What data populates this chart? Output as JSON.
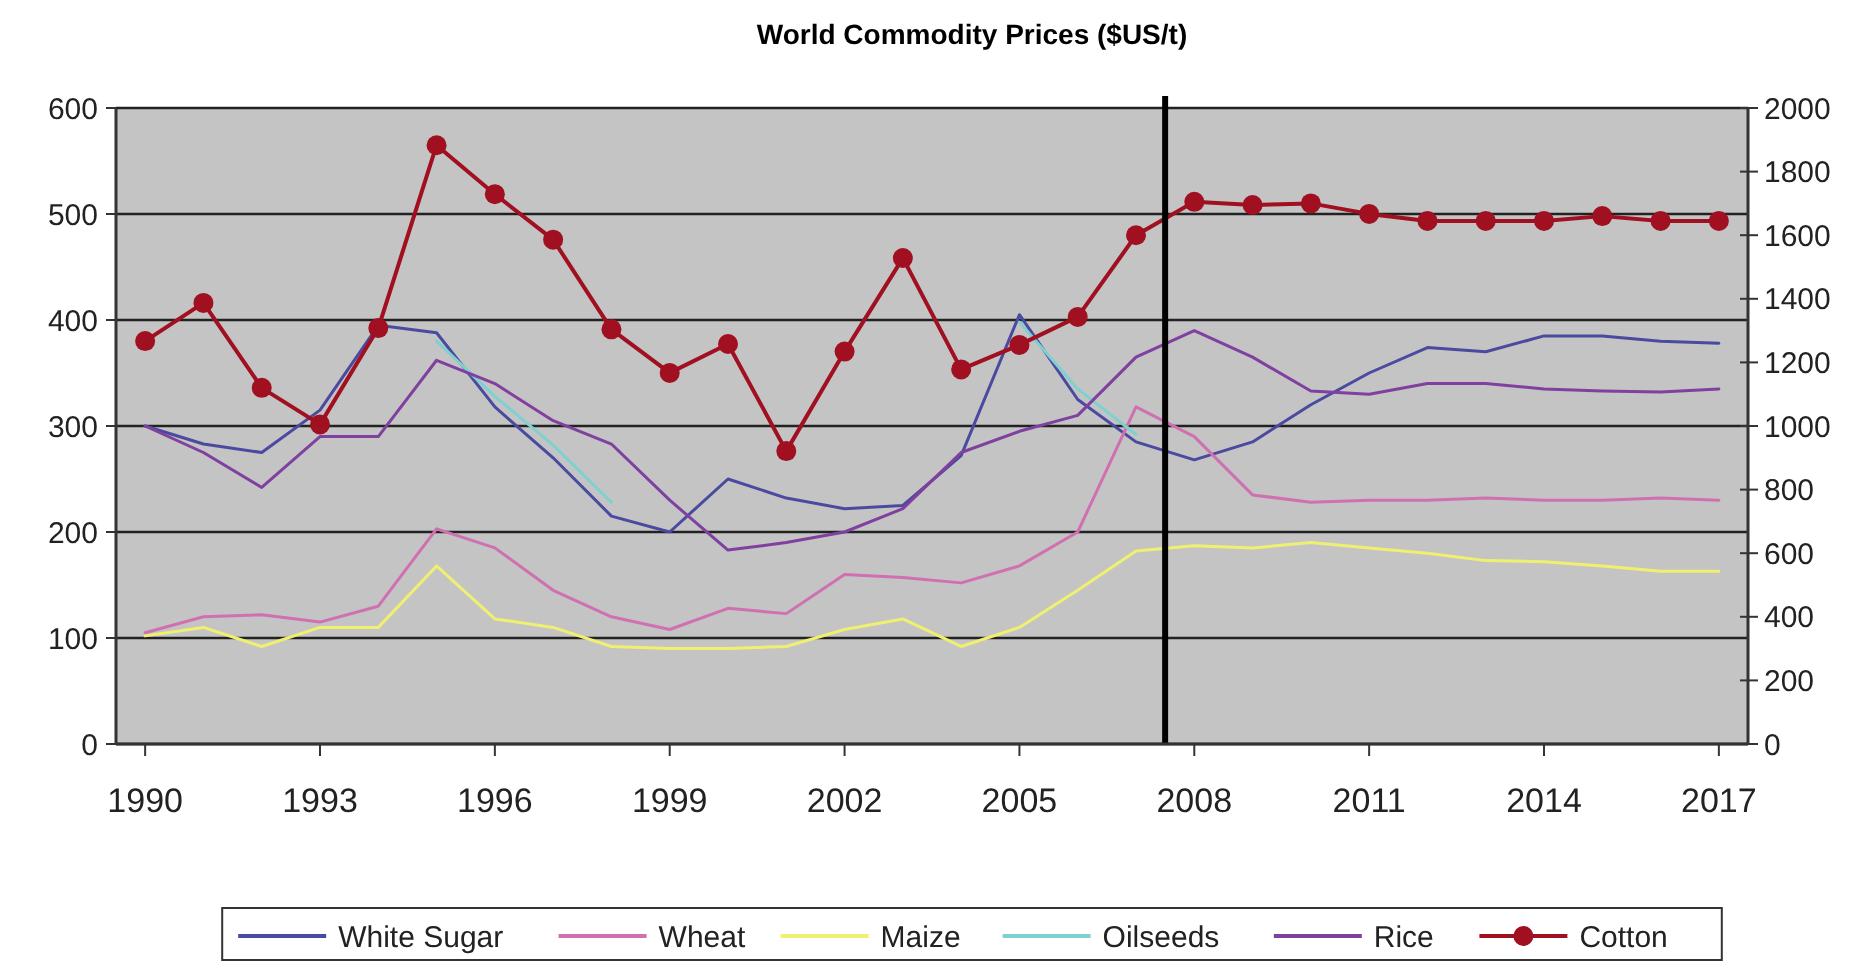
{
  "chart_data": {
    "type": "line",
    "title": "World Commodity Prices ($US/t)",
    "x": [
      1990,
      1991,
      1992,
      1993,
      1994,
      1995,
      1996,
      1997,
      1998,
      1999,
      2000,
      2001,
      2002,
      2003,
      2004,
      2005,
      2006,
      2007,
      2008,
      2009,
      2010,
      2011,
      2012,
      2013,
      2014,
      2015,
      2016,
      2017
    ],
    "xlim": [
      1989.5,
      2017.5
    ],
    "xticks": [
      1990,
      1993,
      1996,
      1999,
      2002,
      2005,
      2008,
      2011,
      2014,
      2017
    ],
    "ylim": [
      0,
      600
    ],
    "yticks": [
      0,
      100,
      200,
      300,
      400,
      500,
      600
    ],
    "y2lim": [
      0,
      2000
    ],
    "y2ticks": [
      0,
      200,
      400,
      600,
      800,
      1000,
      1200,
      1400,
      1600,
      1800,
      2000
    ],
    "grid": "y",
    "legend": "bottom",
    "marker": "none",
    "line_style": "solid",
    "ref_lines": [
      {
        "axis": "x",
        "value": 2007.5,
        "color": "#000000"
      }
    ],
    "series": [
      {
        "name": "White Sugar",
        "color": "#4a4aa0",
        "values": [
          300,
          283,
          275,
          315,
          395,
          388,
          318,
          270,
          215,
          200,
          250,
          232,
          222,
          225,
          272,
          405,
          325,
          285,
          268,
          285,
          320,
          350,
          374,
          370,
          385,
          385,
          380,
          378
        ]
      },
      {
        "name": "Wheat",
        "color": "#d070b0",
        "values": [
          105,
          120,
          122,
          115,
          130,
          203,
          185,
          145,
          120,
          108,
          128,
          123,
          160,
          157,
          152,
          168,
          200,
          318,
          290,
          235,
          228,
          230,
          230,
          232,
          230,
          230,
          232,
          230
        ]
      },
      {
        "name": "Maize",
        "color": "#f0f070",
        "values": [
          102,
          110,
          92,
          110,
          110,
          168,
          118,
          110,
          92,
          90,
          90,
          92,
          108,
          118,
          92,
          110,
          145,
          182,
          187,
          185,
          190,
          185,
          180,
          173,
          172,
          168,
          163,
          163
        ]
      },
      {
        "name": "Oilseeds",
        "color": "#80d0d0",
        "values": [
          null,
          null,
          null,
          null,
          null,
          380,
          328,
          282,
          228,
          null,
          null,
          null,
          null,
          null,
          null,
          398,
          335,
          292,
          null,
          null,
          null,
          null,
          null,
          null,
          null,
          null,
          null,
          null
        ]
      },
      {
        "name": "Rice",
        "color": "#8040a0",
        "values": [
          300,
          275,
          242,
          290,
          290,
          362,
          340,
          305,
          283,
          230,
          183,
          190,
          200,
          222,
          275,
          295,
          310,
          365,
          390,
          365,
          333,
          330,
          340,
          340,
          335,
          333,
          332,
          335
        ]
      },
      {
        "name": "Cotton",
        "color": "#a01020",
        "axis": "y2",
        "marker": "circle",
        "values": [
          1267,
          1387,
          1120,
          1005,
          1308,
          1883,
          1729,
          1586,
          1304,
          1167,
          1258,
          921,
          1234,
          1528,
          1178,
          1255,
          1343,
          1600,
          1705,
          1695,
          1700,
          1667,
          1645,
          1645,
          1645,
          1660,
          1645,
          1645
        ]
      }
    ]
  }
}
